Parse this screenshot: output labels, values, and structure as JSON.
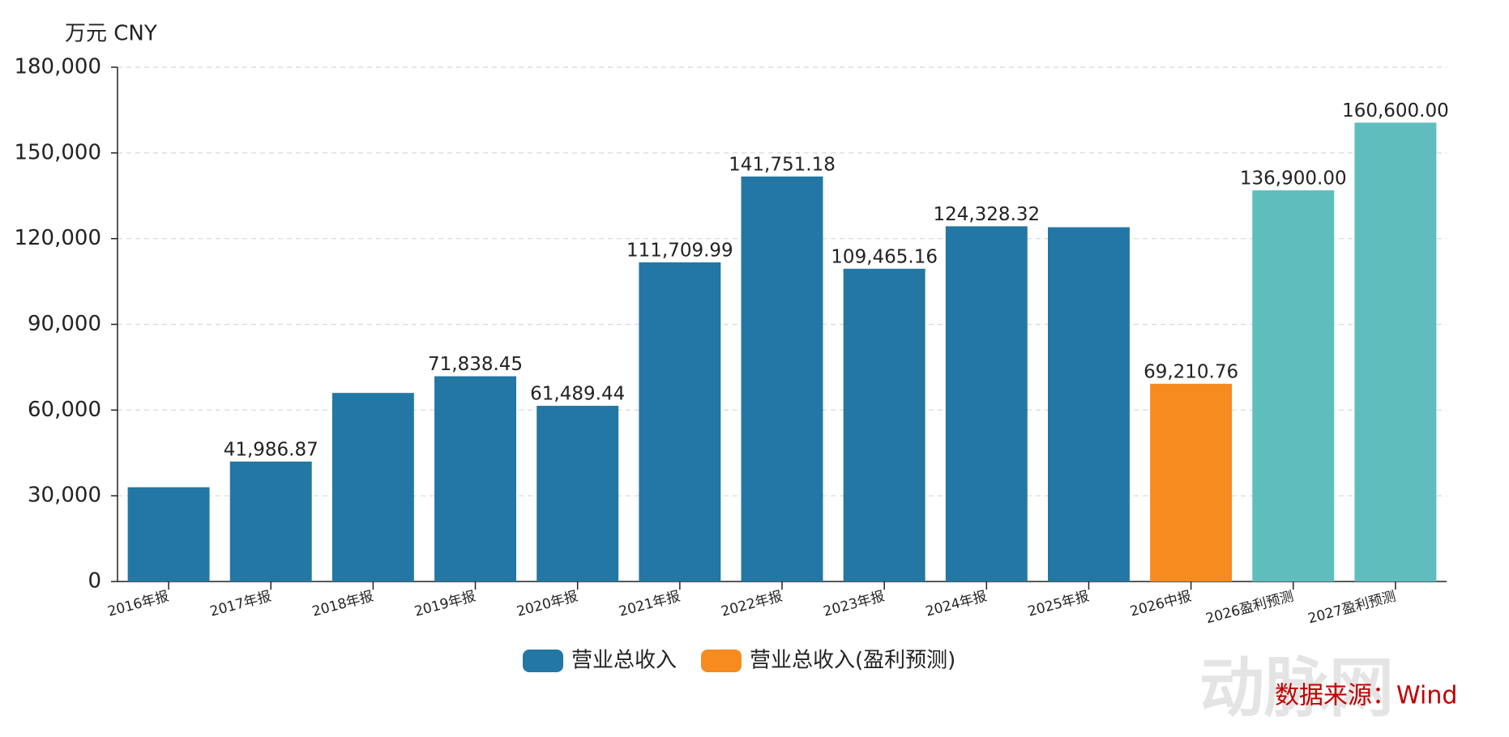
{
  "chart_data": {
    "type": "bar",
    "unit": "万元  CNY",
    "categories": [
      "2016年报",
      "2017年报",
      "2018年报",
      "2019年报",
      "2020年报",
      "2021年报",
      "2022年报",
      "2023年报",
      "2024年报",
      "2025年报",
      "2026中报",
      "2026盈利预测",
      "2027盈利预测"
    ],
    "values": [
      33000,
      41986.87,
      66000,
      71838.45,
      61489.44,
      111709.99,
      141751.18,
      109465.16,
      124328.32,
      124000,
      69210.76,
      136900,
      160600
    ],
    "value_labels": [
      null,
      "41,986.87",
      null,
      "71,838.45",
      "61,489.44",
      "111,709.99",
      "141,751.18",
      "109,465.16",
      "124,328.32",
      null,
      "69,210.76",
      "136,900.00",
      "160,600.00"
    ],
    "colors": [
      "#2377a4",
      "#2377a4",
      "#2377a4",
      "#2377a4",
      "#2377a4",
      "#2377a4",
      "#2377a4",
      "#2377a4",
      "#2377a4",
      "#2377a4",
      "#f68b1f",
      "#5fbdbe",
      "#5fbdbe"
    ],
    "legend": [
      {
        "name": "营业总收入",
        "color": "#2377a4"
      },
      {
        "name": "营业总收入(盈利预测)",
        "color": "#f68b1f"
      }
    ],
    "ylim": [
      0,
      180000
    ],
    "yticks": [
      0,
      {
        "value": 30000,
        "label": "30,000"
      },
      {
        "value": 60000,
        "label": "60,000"
      },
      {
        "value": 90000,
        "label": "90,000"
      },
      {
        "value": 120000,
        "label": "120,000"
      },
      {
        "value": 150000,
        "label": "150,000"
      },
      {
        "value": 180000,
        "label": "180,000"
      }
    ],
    "grid": true,
    "source": "数据来源：Wind",
    "watermark": "动脉网"
  }
}
